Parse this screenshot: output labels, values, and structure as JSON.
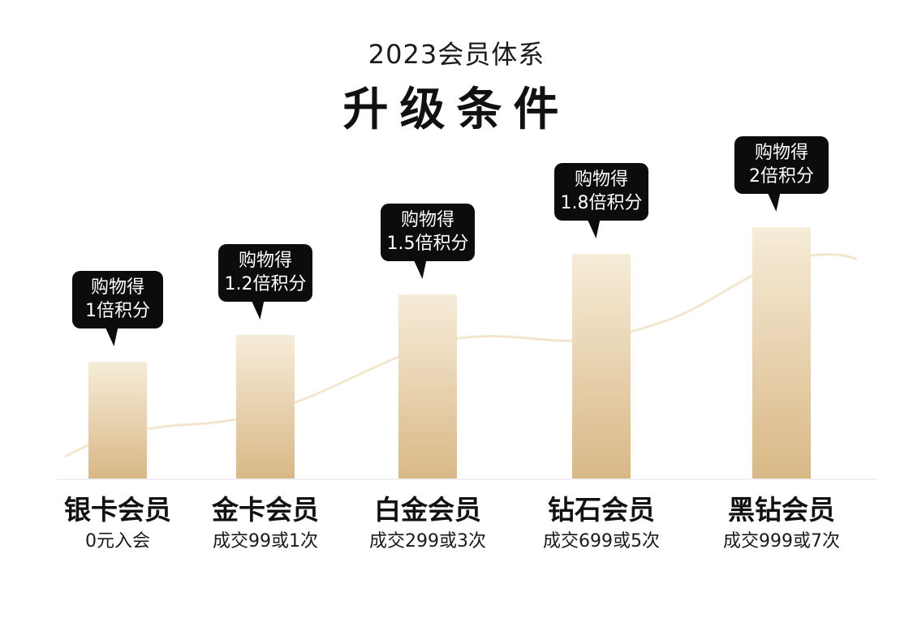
{
  "header": {
    "subtitle": "2023会员体系",
    "title": "升级条件"
  },
  "chart_data": {
    "type": "bar",
    "title": "升级条件",
    "subtitle": "2023会员体系",
    "categories": [
      "银卡会员",
      "金卡会员",
      "白金会员",
      "钻石会员",
      "黑钻会员"
    ],
    "conditions": [
      "0元入会",
      "成交99或1次",
      "成交299或3次",
      "成交699或5次",
      "成交999或7次"
    ],
    "series": [
      {
        "values": [
          1,
          1.2,
          1.5,
          1.8,
          2
        ]
      }
    ],
    "callouts": [
      {
        "line1": "购物得",
        "line2": "1倍积分"
      },
      {
        "line1": "购物得",
        "line2": "1.2倍积分"
      },
      {
        "line1": "购物得",
        "line2": "1.5倍积分"
      },
      {
        "line1": "购物得",
        "line2": "1.8倍积分"
      },
      {
        "line1": "购物得",
        "line2": "2倍积分"
      }
    ],
    "grid": false,
    "legend": "none",
    "colors": {
      "bar_top": "#f6ecd8",
      "bar_bottom": "#d9b886",
      "trend": "#f3e6cf",
      "baseline": "#eef0f6",
      "callout": "#0c0c0c"
    }
  }
}
